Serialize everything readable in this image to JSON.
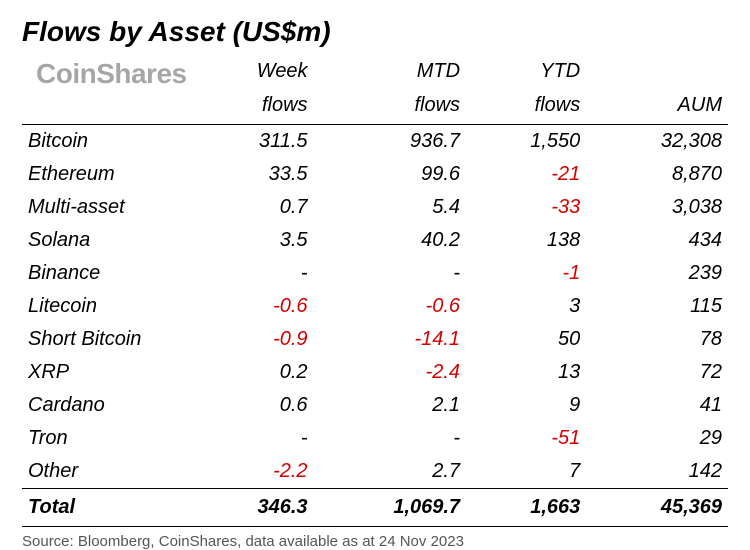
{
  "title": "Flows by Asset (US$m)",
  "watermark": "CoinShares",
  "columns": [
    "",
    "Week flows",
    "MTD flows",
    "YTD flows",
    "AUM"
  ],
  "rows": [
    {
      "asset": "Bitcoin",
      "week": "311.5",
      "mtd": "936.7",
      "ytd": "1,550",
      "aum": "32,308",
      "neg": {
        "week": false,
        "mtd": false,
        "ytd": false
      }
    },
    {
      "asset": "Ethereum",
      "week": "33.5",
      "mtd": "99.6",
      "ytd": "-21",
      "aum": "8,870",
      "neg": {
        "week": false,
        "mtd": false,
        "ytd": true
      }
    },
    {
      "asset": "Multi-asset",
      "week": "0.7",
      "mtd": "5.4",
      "ytd": "-33",
      "aum": "3,038",
      "neg": {
        "week": false,
        "mtd": false,
        "ytd": true
      }
    },
    {
      "asset": "Solana",
      "week": "3.5",
      "mtd": "40.2",
      "ytd": "138",
      "aum": "434",
      "neg": {
        "week": false,
        "mtd": false,
        "ytd": false
      }
    },
    {
      "asset": "Binance",
      "week": "-",
      "mtd": "-",
      "ytd": "-1",
      "aum": "239",
      "neg": {
        "week": false,
        "mtd": false,
        "ytd": true
      }
    },
    {
      "asset": "Litecoin",
      "week": "-0.6",
      "mtd": "-0.6",
      "ytd": "3",
      "aum": "115",
      "neg": {
        "week": true,
        "mtd": true,
        "ytd": false
      }
    },
    {
      "asset": "Short Bitcoin",
      "week": "-0.9",
      "mtd": "-14.1",
      "ytd": "50",
      "aum": "78",
      "neg": {
        "week": true,
        "mtd": true,
        "ytd": false
      }
    },
    {
      "asset": "XRP",
      "week": "0.2",
      "mtd": "-2.4",
      "ytd": "13",
      "aum": "72",
      "neg": {
        "week": false,
        "mtd": true,
        "ytd": false
      }
    },
    {
      "asset": "Cardano",
      "week": "0.6",
      "mtd": "2.1",
      "ytd": "9",
      "aum": "41",
      "neg": {
        "week": false,
        "mtd": false,
        "ytd": false
      }
    },
    {
      "asset": "Tron",
      "week": "-",
      "mtd": "-",
      "ytd": "-51",
      "aum": "29",
      "neg": {
        "week": false,
        "mtd": false,
        "ytd": true
      }
    },
    {
      "asset": "Other",
      "week": "-2.2",
      "mtd": "2.7",
      "ytd": "7",
      "aum": "142",
      "neg": {
        "week": true,
        "mtd": false,
        "ytd": false
      }
    }
  ],
  "total": {
    "asset": "Total",
    "week": "346.3",
    "mtd": "1,069.7",
    "ytd": "1,663",
    "aum": "45,369"
  },
  "source": "Source: Bloomberg, CoinShares, data available as at 24 Nov 2023",
  "colors": {
    "negative": "#d40000",
    "text": "#000000",
    "background": "#ffffff",
    "watermark": "rgba(0,0,0,0.35)",
    "source": "#555555"
  }
}
